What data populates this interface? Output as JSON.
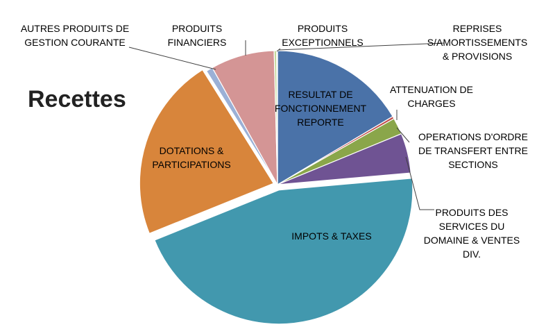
{
  "chart_data": {
    "type": "pie",
    "title": "Recettes",
    "slices": [
      {
        "label": "RESULTAT DE FONCTIONNEMENT REPORTE",
        "value": 16.5,
        "color": "#4A72A8"
      },
      {
        "label": "ATTENUATION DE CHARGES",
        "value": 0.3,
        "color": "#C0504D"
      },
      {
        "label": "OPERATIONS D'ORDRE DE TRANSFERT ENTRE SECTIONS",
        "value": 2.0,
        "color": "#8AA64A"
      },
      {
        "label": "PRODUITS DES SERVICES DU DOMAINE & VENTES DIV.",
        "value": 4.8,
        "color": "#6F5393"
      },
      {
        "label": "IMPOTS & TAXES",
        "value": 45.3,
        "color": "#4298AE"
      },
      {
        "label": "DOTATIONS & PARTICIPATIONS",
        "value": 22.2,
        "color": "#D8853B"
      },
      {
        "label": "AUTRES PRODUITS DE GESTION COURANTE",
        "value": 0.8,
        "color": "#9BB0D6"
      },
      {
        "label": "PRODUITS FINANCIERS",
        "value": 7.7,
        "color": "#D49595"
      },
      {
        "label": "PRODUITS EXCEPTIONNELS",
        "value": 0.3,
        "color": "#C5D89C"
      },
      {
        "label": "REPRISES S/AMORTISSEMENTS & PROVISIONS",
        "value": 0.1,
        "color": "#B4A0C8"
      }
    ]
  }
}
